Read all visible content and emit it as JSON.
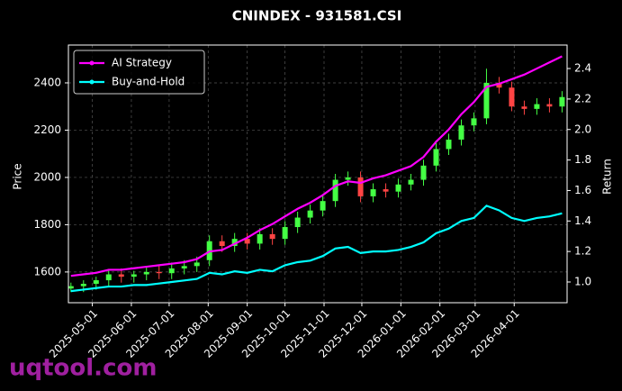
{
  "chart_data": {
    "type": "candlestick",
    "title": "CNINDEX - 931581.CSI",
    "ylabel": "Price",
    "y2label": "Return",
    "watermark": "uqtool.com",
    "x": [
      "2025-04-14",
      "2025-04-24",
      "2025-05-04",
      "2025-05-14",
      "2025-05-24",
      "2025-06-03",
      "2025-06-13",
      "2025-06-23",
      "2025-07-03",
      "2025-07-13",
      "2025-07-23",
      "2025-08-02",
      "2025-08-12",
      "2025-08-22",
      "2025-09-01",
      "2025-09-11",
      "2025-09-21",
      "2025-10-01",
      "2025-10-11",
      "2025-10-21",
      "2025-10-31",
      "2025-11-10",
      "2025-11-20",
      "2025-11-30",
      "2025-12-10",
      "2025-12-20",
      "2025-12-30",
      "2026-01-09",
      "2026-01-19",
      "2026-01-29",
      "2026-02-08",
      "2026-02-18",
      "2026-02-28",
      "2026-03-10",
      "2026-03-20",
      "2026-03-30",
      "2026-04-09",
      "2026-04-19",
      "2026-04-29",
      "2026-05-09"
    ],
    "open": [
      1530,
      1540,
      1550,
      1565,
      1590,
      1580,
      1590,
      1600,
      1595,
      1615,
      1625,
      1650,
      1730,
      1710,
      1740,
      1720,
      1760,
      1740,
      1790,
      1830,
      1860,
      1900,
      1990,
      2000,
      1920,
      1950,
      1940,
      1970,
      1990,
      2050,
      2120,
      2160,
      2220,
      2250,
      2400,
      2380,
      2300,
      2290,
      2310,
      2300
    ],
    "high": [
      1555,
      1565,
      1580,
      1610,
      1615,
      1605,
      1625,
      1625,
      1640,
      1650,
      1665,
      1755,
      1755,
      1765,
      1765,
      1785,
      1785,
      1815,
      1855,
      1885,
      1925,
      2015,
      2025,
      2025,
      1975,
      1975,
      1995,
      2015,
      2075,
      2145,
      2185,
      2245,
      2275,
      2460,
      2425,
      2405,
      2325,
      2335,
      2335,
      2365
    ],
    "low": [
      1515,
      1515,
      1525,
      1540,
      1555,
      1555,
      1565,
      1570,
      1570,
      1590,
      1600,
      1625,
      1685,
      1685,
      1695,
      1695,
      1715,
      1715,
      1765,
      1805,
      1835,
      1875,
      1965,
      1895,
      1895,
      1915,
      1915,
      1945,
      1965,
      2025,
      2095,
      2135,
      2195,
      2225,
      2355,
      2280,
      2265,
      2265,
      2275,
      2275
    ],
    "close": [
      1540,
      1550,
      1565,
      1590,
      1580,
      1590,
      1600,
      1595,
      1615,
      1625,
      1640,
      1730,
      1710,
      1740,
      1720,
      1760,
      1740,
      1790,
      1830,
      1860,
      1900,
      1990,
      2000,
      1920,
      1950,
      1940,
      1970,
      1990,
      2050,
      2120,
      2160,
      2220,
      2250,
      2400,
      2380,
      2300,
      2290,
      2310,
      2300,
      2340
    ],
    "up_color": "#44ff44",
    "down_color": "#ff4444",
    "series": [
      {
        "name": "AI Strategy",
        "color": "#ff00ff",
        "axis": "y2",
        "values": [
          1.04,
          1.05,
          1.06,
          1.08,
          1.08,
          1.09,
          1.1,
          1.11,
          1.12,
          1.13,
          1.15,
          1.2,
          1.21,
          1.25,
          1.29,
          1.34,
          1.38,
          1.43,
          1.48,
          1.52,
          1.57,
          1.63,
          1.66,
          1.65,
          1.68,
          1.7,
          1.73,
          1.76,
          1.82,
          1.92,
          2.0,
          2.1,
          2.18,
          2.28,
          2.3,
          2.33,
          2.36,
          2.4,
          2.44,
          2.48
        ]
      },
      {
        "name": "Buy-and-Hold",
        "color": "#00ffff",
        "axis": "y2",
        "values": [
          0.94,
          0.95,
          0.96,
          0.97,
          0.97,
          0.98,
          0.98,
          0.99,
          1.0,
          1.01,
          1.02,
          1.06,
          1.05,
          1.07,
          1.06,
          1.08,
          1.07,
          1.11,
          1.13,
          1.14,
          1.17,
          1.22,
          1.23,
          1.19,
          1.2,
          1.2,
          1.21,
          1.23,
          1.26,
          1.32,
          1.35,
          1.4,
          1.42,
          1.5,
          1.47,
          1.42,
          1.4,
          1.42,
          1.43,
          1.45
        ]
      }
    ],
    "xlim": [
      "2025-04-12",
      "2026-05-13"
    ],
    "xticks": [
      "2025-05-01",
      "2025-06-01",
      "2025-07-01",
      "2025-08-01",
      "2025-09-01",
      "2025-10-01",
      "2025-11-01",
      "2025-12-01",
      "2026-01-01",
      "2026-02-01",
      "2026-03-01",
      "2026-04-01"
    ],
    "ylim": [
      1470,
      2560
    ],
    "yticks": [
      1600,
      1800,
      2000,
      2200,
      2400
    ],
    "y2lim": [
      0.864,
      2.554
    ],
    "y2ticks": [
      {
        "value": 1,
        "label": "1.0"
      },
      1.2,
      1.4,
      1.6,
      1.8,
      {
        "value": 2,
        "label": "2.0"
      },
      2.2,
      2.4
    ],
    "grid": true,
    "legend": "upper left"
  }
}
